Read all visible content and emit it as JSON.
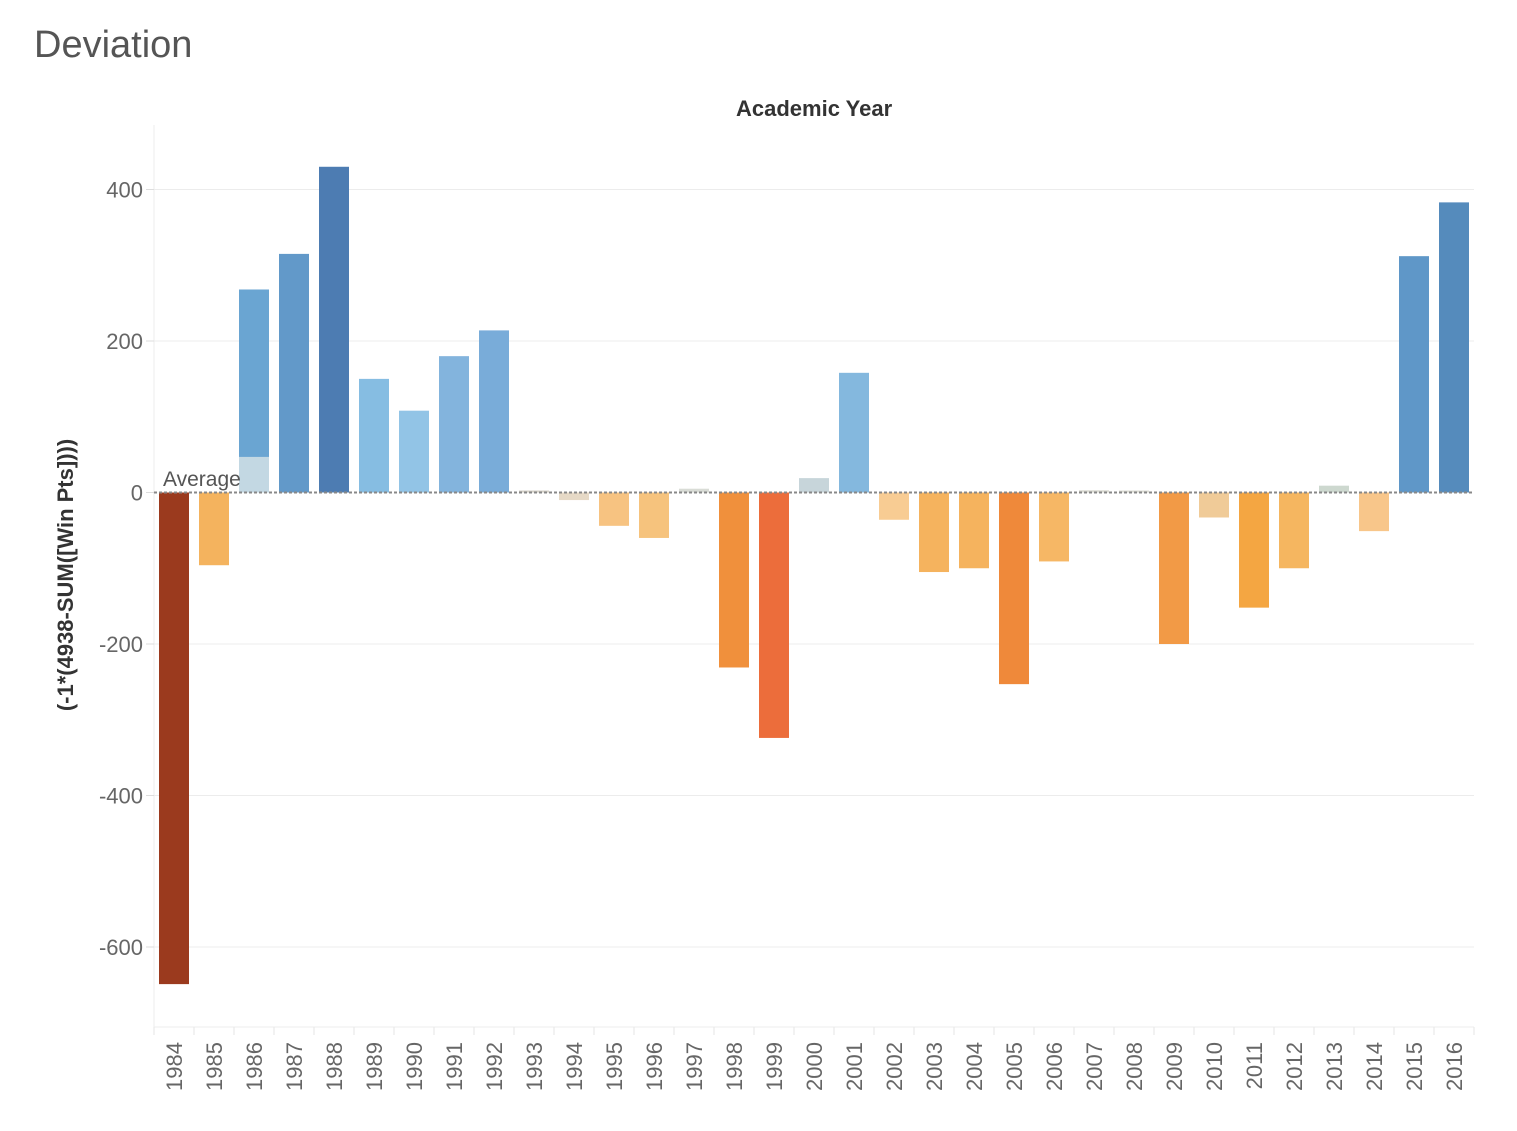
{
  "page": {
    "title": "Deviation"
  },
  "chart_data": {
    "type": "bar",
    "title": "",
    "top_axis_label": "Academic Year",
    "xlabel": "",
    "ylabel": "(-1*(4938-SUM([Win Pts])))",
    "ylim": [
      -700,
      490
    ],
    "yticks": [
      400,
      200,
      0,
      -200,
      -400,
      -600
    ],
    "grid": true,
    "reference_line": {
      "label": "Average",
      "value": 0
    },
    "categories": [
      "1984",
      "1985",
      "1986",
      "1987",
      "1988",
      "1989",
      "1990",
      "1991",
      "1992",
      "1993",
      "1994",
      "1995",
      "1996",
      "1997",
      "1998",
      "1999",
      "2000",
      "2001",
      "2002",
      "2003",
      "2004",
      "2005",
      "2006",
      "2007",
      "2008",
      "2009",
      "2010",
      "2011",
      "2012",
      "2013",
      "2014",
      "2015",
      "2016"
    ],
    "values": [
      -649,
      -96,
      268,
      315,
      430,
      150,
      108,
      180,
      214,
      0,
      -10,
      -44,
      -60,
      5,
      -231,
      -324,
      19,
      158,
      -36,
      -105,
      -100,
      -253,
      -91,
      3,
      2,
      -200,
      -33,
      -152,
      -100,
      9,
      -51,
      312,
      383
    ],
    "colors": [
      "#9b3a1e",
      "#f4b35e",
      "#6aa5d2",
      "#6299c9",
      "#4d7cb2",
      "#86bde2",
      "#92c4e6",
      "#83b4dd",
      "#79acd9",
      "#d6d2c8",
      "#e6d9c6",
      "#f7c381",
      "#f6c37d",
      "#d9dcd6",
      "#f0903c",
      "#ec6d3b",
      "#c7d5da",
      "#84b8de",
      "#f8cc93",
      "#f5b35e",
      "#f5b35e",
      "#ef893a",
      "#f6b765",
      "#dcdcd4",
      "#dcdcd4",
      "#f29a46",
      "#f0cb98",
      "#f4a642",
      "#f5b660",
      "#cdd8cf",
      "#f8c68a",
      "#5f97c8",
      "#558bbc"
    ],
    "annotation": {
      "category": "1986",
      "overlay_value": 47,
      "overlay_color": "#c3d8e3"
    }
  }
}
